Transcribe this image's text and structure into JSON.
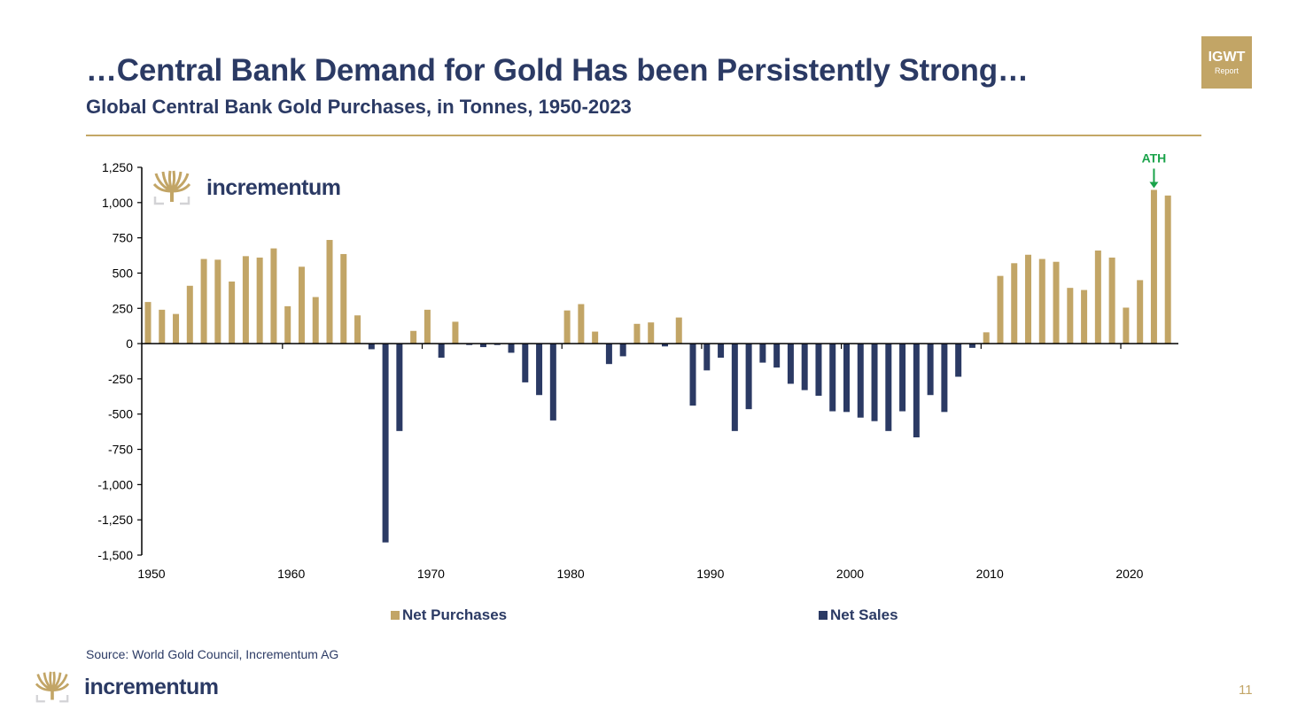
{
  "header": {
    "title": "…Central Bank Demand for Gold Has been Persistently Strong…",
    "subtitle": "Global Central Bank Gold Purchases, in Tonnes, 1950-2023"
  },
  "badge": {
    "line1": "IGWT",
    "line2": "Report"
  },
  "brand": {
    "name": "incrementum",
    "logo_icon": "tree-logo-icon"
  },
  "source": "Source: World Gold Council, Incrementum AG",
  "page_number": "11",
  "colors": {
    "purchases": "#c2a566",
    "sales": "#2b3a64",
    "annotation": "#1aa34a",
    "text": "#2b3a64"
  },
  "chart_data": {
    "type": "bar",
    "title": "Global Central Bank Gold Purchases, in Tonnes, 1950-2023",
    "xlabel": "",
    "ylabel": "",
    "ylim": [
      -1500,
      1250
    ],
    "yticks": [
      1250,
      1000,
      750,
      500,
      250,
      0,
      -250,
      -500,
      -750,
      -1000,
      -1250,
      -1500
    ],
    "ytick_labels": [
      "1,250",
      "1,000",
      "750",
      "500",
      "250",
      "0",
      "-250",
      "-500",
      "-750",
      "-1,000",
      "-1,250",
      "-1,500"
    ],
    "xticks": [
      1950,
      1960,
      1970,
      1980,
      1990,
      2000,
      2010,
      2020
    ],
    "xtick_labels": [
      "1950",
      "1960",
      "1970",
      "1980",
      "1990",
      "2000",
      "2010",
      "2020"
    ],
    "grid": false,
    "legend": {
      "placement": "bottom",
      "entries": [
        "Net Purchases",
        "Net Sales"
      ]
    },
    "series": [
      {
        "name": "Net Purchases",
        "rule": "value >= 0"
      },
      {
        "name": "Net Sales",
        "rule": "value < 0"
      }
    ],
    "annotation": {
      "text": "ATH",
      "year": 2022,
      "arrow": "down"
    },
    "x": [
      1950,
      1951,
      1952,
      1953,
      1954,
      1955,
      1956,
      1957,
      1958,
      1959,
      1960,
      1961,
      1962,
      1963,
      1964,
      1965,
      1966,
      1967,
      1968,
      1969,
      1970,
      1971,
      1972,
      1973,
      1974,
      1975,
      1976,
      1977,
      1978,
      1979,
      1980,
      1981,
      1982,
      1983,
      1984,
      1985,
      1986,
      1987,
      1988,
      1989,
      1990,
      1991,
      1992,
      1993,
      1994,
      1995,
      1996,
      1997,
      1998,
      1999,
      2000,
      2001,
      2002,
      2003,
      2004,
      2005,
      2006,
      2007,
      2008,
      2009,
      2010,
      2011,
      2012,
      2013,
      2014,
      2015,
      2016,
      2017,
      2018,
      2019,
      2020,
      2021,
      2022,
      2023
    ],
    "values": [
      295,
      240,
      210,
      410,
      600,
      595,
      440,
      620,
      610,
      675,
      265,
      545,
      330,
      735,
      635,
      200,
      -40,
      -1410,
      -620,
      90,
      240,
      -100,
      155,
      -10,
      -25,
      -10,
      -65,
      -275,
      -365,
      -545,
      235,
      280,
      85,
      -145,
      -90,
      140,
      150,
      -20,
      185,
      -440,
      -190,
      -100,
      -620,
      -465,
      -135,
      -170,
      -285,
      -330,
      -370,
      -480,
      -485,
      -525,
      -550,
      -620,
      -480,
      -665,
      -365,
      -485,
      -235,
      -30,
      80,
      480,
      570,
      630,
      600,
      580,
      395,
      380,
      660,
      610,
      255,
      450,
      1090,
      1050
    ]
  }
}
